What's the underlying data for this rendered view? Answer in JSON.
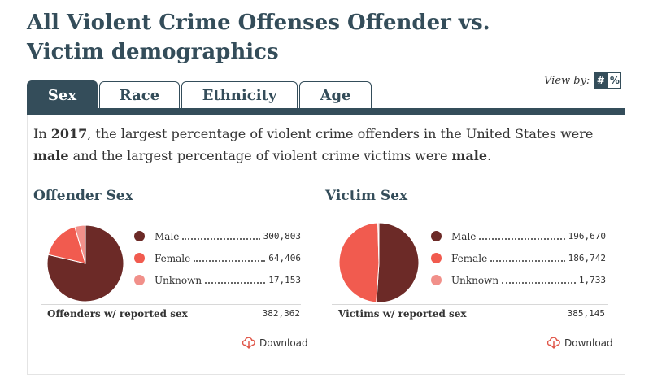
{
  "page": {
    "title": "All Violent Crime Offenses Offender vs. Victim demographics"
  },
  "tabs": [
    {
      "label": "Sex",
      "active": true
    },
    {
      "label": "Race",
      "active": false
    },
    {
      "label": "Ethnicity",
      "active": false
    },
    {
      "label": "Age",
      "active": false
    }
  ],
  "view_by": {
    "label": "View by:",
    "options": [
      "#",
      "%"
    ],
    "selected": "#"
  },
  "summary": {
    "p1": "In ",
    "year": "2017",
    "p2": ", the largest percentage of violent crime offenders in the United States were ",
    "offender_sex": "male",
    "p3": " and the largest percentage of violent crime victims were ",
    "victim_sex": "male",
    "p4": "."
  },
  "colors": {
    "male": "#6c2a27",
    "female": "#f15b4f",
    "unknown": "#f1908a",
    "header": "#344d5a",
    "download_icon": "#e0574a"
  },
  "download_label": "Download",
  "chart_data": [
    {
      "type": "pie",
      "title": "Offender Sex",
      "categories": [
        "Male",
        "Female",
        "Unknown"
      ],
      "values": [
        300803,
        64406,
        17153
      ],
      "display_values": [
        "300,803",
        "64,406",
        "17,153"
      ],
      "total_label": "Offenders w/ reported sex",
      "total": "382,362",
      "legend": "right"
    },
    {
      "type": "pie",
      "title": "Victim Sex",
      "categories": [
        "Male",
        "Female",
        "Unknown"
      ],
      "values": [
        196670,
        186742,
        1733
      ],
      "display_values": [
        "196,670",
        "186,742",
        "1,733"
      ],
      "total_label": "Victims w/ reported sex",
      "total": "385,145",
      "legend": "right"
    }
  ]
}
